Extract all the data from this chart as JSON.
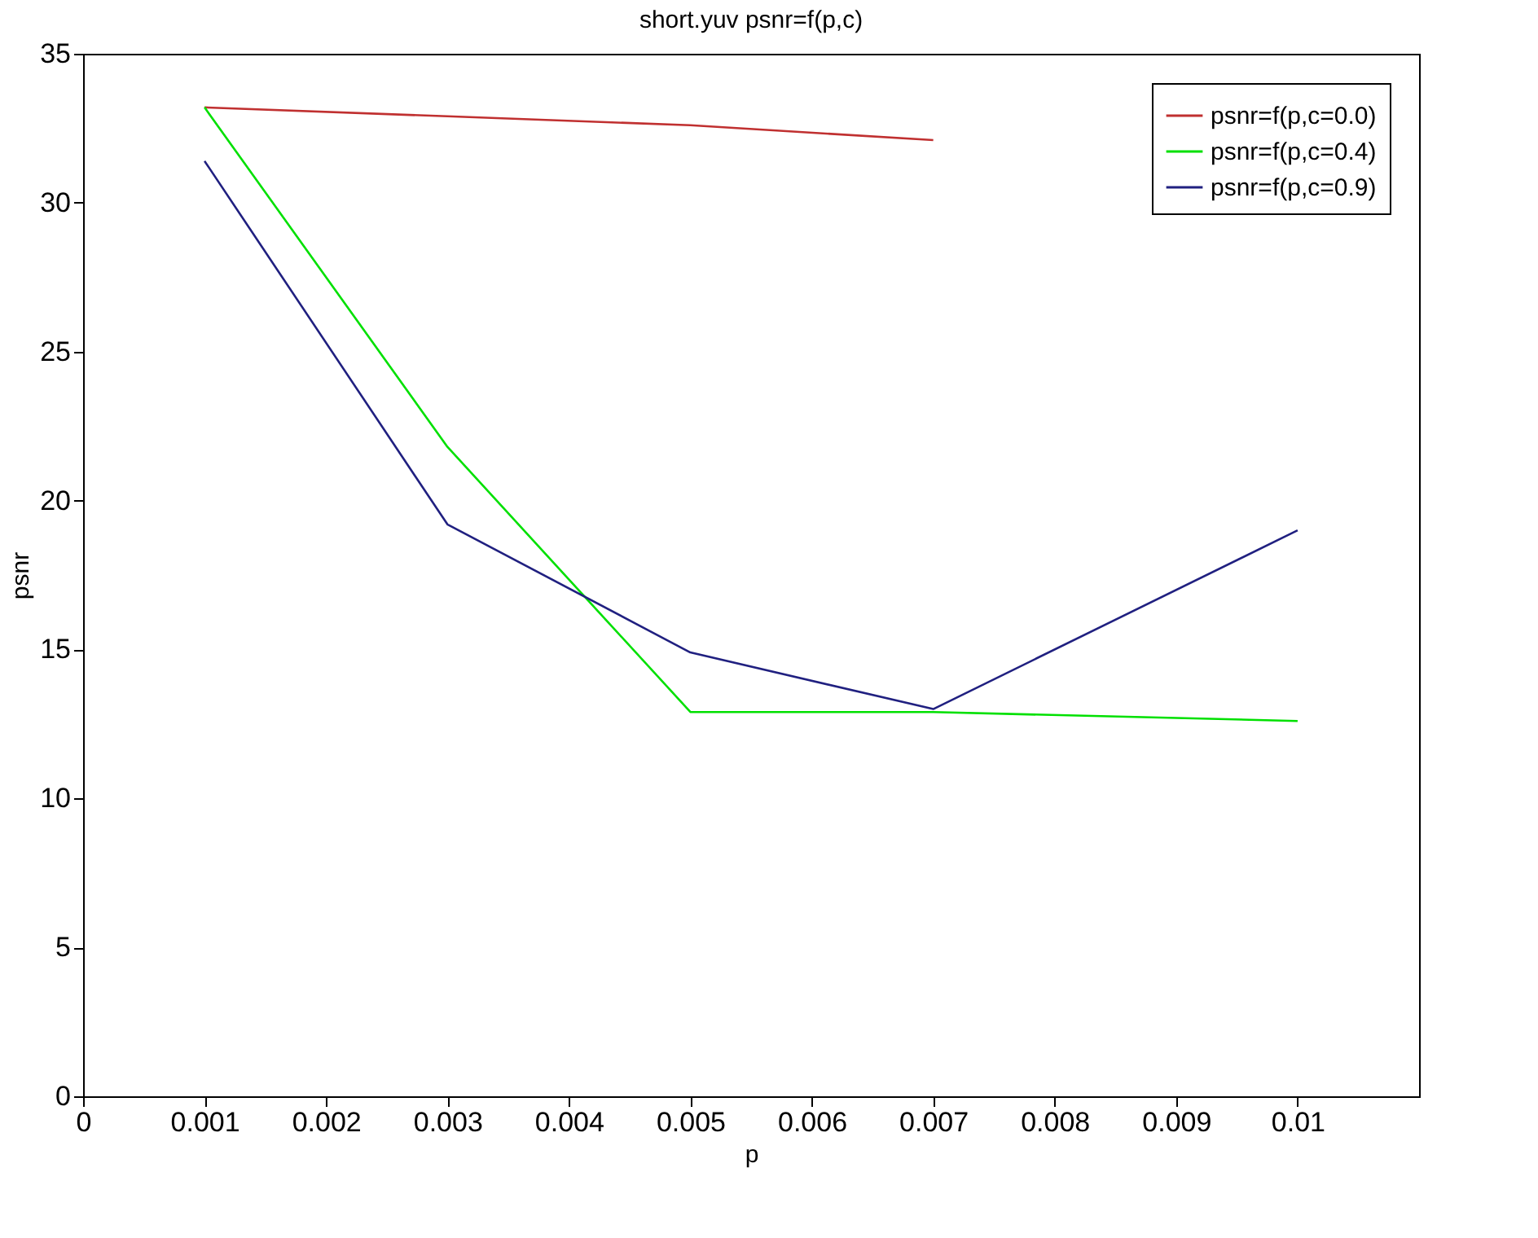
{
  "chart_data": {
    "type": "line",
    "title": "short.yuv psnr=f(p,c)",
    "xlabel": "p",
    "ylabel": "psnr",
    "x": [
      0.001,
      0.003,
      0.005,
      0.007,
      0.01
    ],
    "series": [
      {
        "name": "psnr=f(p,c=0.0)",
        "color": "#c03030",
        "values": [
          33.2,
          32.9,
          32.6,
          32.1,
          null
        ]
      },
      {
        "name": "psnr=f(p,c=0.4)",
        "color": "#00e000",
        "values": [
          33.2,
          21.8,
          12.9,
          12.9,
          12.6
        ]
      },
      {
        "name": "psnr=f(p,c=0.9)",
        "color": "#202080",
        "values": [
          31.4,
          19.2,
          14.9,
          13.0,
          19.0
        ]
      }
    ],
    "xlim": [
      0,
      0.011
    ],
    "xticks": [
      0,
      0.001,
      0.002,
      0.003,
      0.004,
      0.005,
      0.006,
      0.007,
      0.008,
      0.009,
      0.01
    ],
    "ylim": [
      0,
      35
    ],
    "yticks": [
      0,
      5,
      10,
      15,
      20,
      25,
      30,
      35
    ],
    "grid": false,
    "legend": "top right",
    "marker": "none",
    "line_style": "solid"
  }
}
